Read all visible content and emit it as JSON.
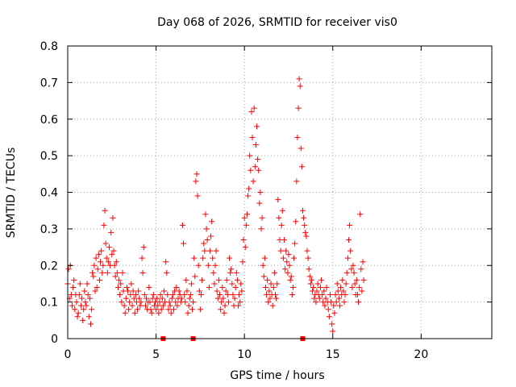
{
  "chart_data": {
    "type": "scatter",
    "title": "Day 068 of 2026, SRMTID for receiver vis0",
    "xlabel": "GPS time / hours",
    "ylabel": "SRMTID / TECUs",
    "xlim": [
      0,
      24
    ],
    "ylim": [
      0,
      0.8
    ],
    "grid": true,
    "x_ticks": [
      0,
      5,
      10,
      15,
      20
    ],
    "x_tick_labels": [
      "0",
      "5",
      "10",
      "15",
      "20"
    ],
    "y_ticks": [
      0,
      0.1,
      0.2,
      0.3,
      0.4,
      0.5,
      0.6,
      0.7,
      0.8
    ],
    "y_tick_labels": [
      "0",
      "0.1",
      "0.2",
      "0.3",
      "0.4",
      "0.5",
      "0.6",
      "0.7",
      "0.8"
    ],
    "marker": "plus",
    "color": "#ff0000",
    "baseline_markers_x": [
      5.4,
      7.1,
      13.3
    ],
    "series": [
      {
        "name": "vis0",
        "x": [
          0.0,
          0.05,
          0.1,
          0.15,
          0.2,
          0.25,
          0.3,
          0.35,
          0.4,
          0.45,
          0.5,
          0.55,
          0.6,
          0.65,
          0.7,
          0.75,
          0.8,
          0.85,
          0.9,
          0.95,
          1.0,
          1.05,
          1.1,
          1.15,
          1.2,
          1.25,
          1.3,
          1.35,
          1.4,
          1.45,
          1.5,
          1.55,
          1.6,
          1.65,
          1.7,
          1.75,
          1.8,
          1.85,
          1.9,
          1.95,
          2.0,
          2.05,
          2.1,
          2.15,
          2.2,
          2.25,
          2.3,
          2.35,
          2.4,
          2.45,
          2.5,
          2.55,
          2.6,
          2.65,
          2.7,
          2.75,
          2.8,
          2.85,
          2.9,
          2.95,
          3.0,
          3.05,
          3.1,
          3.15,
          3.2,
          3.25,
          3.3,
          3.35,
          3.4,
          3.45,
          3.5,
          3.55,
          3.6,
          3.65,
          3.7,
          3.75,
          3.8,
          3.85,
          3.9,
          3.95,
          4.0,
          4.05,
          4.1,
          4.15,
          4.2,
          4.25,
          4.3,
          4.35,
          4.4,
          4.45,
          4.5,
          4.55,
          4.6,
          4.65,
          4.7,
          4.75,
          4.8,
          4.85,
          4.9,
          4.95,
          5.0,
          5.05,
          5.1,
          5.15,
          5.2,
          5.25,
          5.3,
          5.35,
          5.4,
          5.45,
          5.5,
          5.55,
          5.6,
          5.65,
          5.7,
          5.75,
          5.8,
          5.85,
          5.9,
          5.95,
          6.0,
          6.05,
          6.1,
          6.15,
          6.2,
          6.25,
          6.3,
          6.35,
          6.4,
          6.45,
          6.5,
          6.55,
          6.6,
          6.65,
          6.7,
          6.75,
          6.8,
          6.85,
          6.9,
          6.95,
          7.0,
          7.05,
          7.1,
          7.15,
          7.2,
          7.25,
          7.3,
          7.35,
          7.4,
          7.45,
          7.5,
          7.55,
          7.6,
          7.65,
          7.7,
          7.75,
          7.8,
          7.85,
          7.9,
          7.95,
          8.0,
          8.05,
          8.1,
          8.15,
          8.2,
          8.25,
          8.3,
          8.35,
          8.4,
          8.45,
          8.5,
          8.55,
          8.6,
          8.65,
          8.7,
          8.75,
          8.8,
          8.85,
          8.9,
          8.95,
          9.0,
          9.05,
          9.1,
          9.15,
          9.2,
          9.25,
          9.3,
          9.35,
          9.4,
          9.45,
          9.5,
          9.55,
          9.6,
          9.65,
          9.7,
          9.75,
          9.8,
          9.85,
          9.9,
          9.95,
          10.0,
          10.05,
          10.1,
          10.15,
          10.2,
          10.25,
          10.3,
          10.35,
          10.4,
          10.45,
          10.5,
          10.55,
          10.6,
          10.65,
          10.7,
          10.75,
          10.8,
          10.85,
          10.9,
          10.95,
          11.0,
          11.05,
          11.1,
          11.15,
          11.2,
          11.25,
          11.3,
          11.35,
          11.4,
          11.45,
          11.5,
          11.55,
          11.6,
          11.65,
          11.7,
          11.75,
          11.8,
          11.85,
          11.9,
          11.95,
          12.0,
          12.05,
          12.1,
          12.15,
          12.2,
          12.25,
          12.3,
          12.35,
          12.4,
          12.45,
          12.5,
          12.55,
          12.6,
          12.65,
          12.7,
          12.75,
          12.8,
          12.85,
          12.9,
          12.95,
          13.0,
          13.05,
          13.1,
          13.15,
          13.2,
          13.25,
          13.3,
          13.35,
          13.4,
          13.45,
          13.5,
          13.55,
          13.6,
          13.65,
          13.7,
          13.75,
          13.8,
          13.85,
          13.9,
          13.95,
          14.0,
          14.05,
          14.1,
          14.15,
          14.2,
          14.25,
          14.3,
          14.35,
          14.4,
          14.45,
          14.5,
          14.55,
          14.6,
          14.65,
          14.7,
          14.75,
          14.8,
          14.85,
          14.9,
          14.95,
          15.0,
          15.05,
          15.1,
          15.15,
          15.2,
          15.25,
          15.3,
          15.35,
          15.4,
          15.45,
          15.5,
          15.55,
          15.6,
          15.65,
          15.7,
          15.75,
          15.8,
          15.85,
          15.9,
          15.95,
          16.0,
          16.05,
          16.1,
          16.15,
          16.2,
          16.25,
          16.3,
          16.35,
          16.4,
          16.45,
          16.5,
          16.55,
          16.6,
          16.65,
          16.7,
          16.75
        ],
        "y": [
          0.15,
          0.19,
          0.11,
          0.2,
          0.12,
          0.09,
          0.14,
          0.16,
          0.08,
          0.12,
          0.1,
          0.06,
          0.07,
          0.12,
          0.15,
          0.09,
          0.11,
          0.05,
          0.08,
          0.13,
          0.1,
          0.09,
          0.15,
          0.12,
          0.06,
          0.11,
          0.04,
          0.08,
          0.18,
          0.17,
          0.2,
          0.13,
          0.22,
          0.14,
          0.19,
          0.23,
          0.16,
          0.21,
          0.24,
          0.18,
          0.2,
          0.31,
          0.35,
          0.26,
          0.22,
          0.18,
          0.21,
          0.25,
          0.2,
          0.29,
          0.23,
          0.33,
          0.24,
          0.2,
          0.17,
          0.21,
          0.18,
          0.14,
          0.16,
          0.12,
          0.15,
          0.1,
          0.18,
          0.13,
          0.09,
          0.07,
          0.11,
          0.14,
          0.13,
          0.08,
          0.1,
          0.12,
          0.15,
          0.09,
          0.13,
          0.11,
          0.07,
          0.12,
          0.1,
          0.08,
          0.13,
          0.11,
          0.09,
          0.1,
          0.22,
          0.18,
          0.25,
          0.12,
          0.09,
          0.11,
          0.08,
          0.1,
          0.14,
          0.1,
          0.08,
          0.07,
          0.11,
          0.12,
          0.09,
          0.1,
          0.08,
          0.11,
          0.09,
          0.07,
          0.1,
          0.12,
          0.08,
          0.11,
          0.09,
          0.13,
          0.1,
          0.21,
          0.18,
          0.12,
          0.08,
          0.1,
          0.09,
          0.07,
          0.11,
          0.12,
          0.08,
          0.13,
          0.1,
          0.14,
          0.09,
          0.11,
          0.13,
          0.12,
          0.1,
          0.11,
          0.31,
          0.26,
          0.12,
          0.1,
          0.16,
          0.13,
          0.07,
          0.09,
          0.11,
          0.12,
          0.15,
          0.08,
          0.1,
          0.22,
          0.17,
          0.43,
          0.45,
          0.39,
          0.2,
          0.13,
          0.08,
          0.12,
          0.16,
          0.22,
          0.26,
          0.24,
          0.34,
          0.3,
          0.27,
          0.2,
          0.14,
          0.24,
          0.28,
          0.32,
          0.22,
          0.18,
          0.15,
          0.2,
          0.24,
          0.13,
          0.11,
          0.16,
          0.12,
          0.08,
          0.1,
          0.14,
          0.11,
          0.07,
          0.09,
          0.13,
          0.16,
          0.12,
          0.1,
          0.22,
          0.18,
          0.19,
          0.15,
          0.12,
          0.09,
          0.11,
          0.14,
          0.18,
          0.16,
          0.09,
          0.12,
          0.1,
          0.15,
          0.13,
          0.21,
          0.27,
          0.33,
          0.25,
          0.31,
          0.34,
          0.39,
          0.41,
          0.5,
          0.46,
          0.62,
          0.55,
          0.43,
          0.63,
          0.47,
          0.53,
          0.58,
          0.49,
          0.46,
          0.37,
          0.4,
          0.3,
          0.33,
          0.2,
          0.17,
          0.22,
          0.14,
          0.12,
          0.16,
          0.1,
          0.13,
          0.11,
          0.15,
          0.12,
          0.09,
          0.14,
          0.18,
          0.12,
          0.11,
          0.15,
          0.38,
          0.33,
          0.27,
          0.24,
          0.31,
          0.35,
          0.22,
          0.27,
          0.19,
          0.24,
          0.21,
          0.18,
          0.23,
          0.2,
          0.16,
          0.17,
          0.12,
          0.14,
          0.22,
          0.26,
          0.32,
          0.43,
          0.55,
          0.63,
          0.71,
          0.69,
          0.52,
          0.47,
          0.35,
          0.33,
          0.31,
          0.29,
          0.28,
          0.24,
          0.22,
          0.19,
          0.17,
          0.15,
          0.16,
          0.13,
          0.14,
          0.11,
          0.12,
          0.1,
          0.13,
          0.15,
          0.12,
          0.11,
          0.14,
          0.16,
          0.12,
          0.1,
          0.13,
          0.09,
          0.11,
          0.14,
          0.1,
          0.08,
          0.06,
          0.12,
          0.1,
          0.04,
          0.02,
          0.09,
          0.07,
          0.12,
          0.1,
          0.15,
          0.13,
          0.11,
          0.09,
          0.14,
          0.12,
          0.16,
          0.13,
          0.1,
          0.12,
          0.15,
          0.18,
          0.22,
          0.27,
          0.31,
          0.24,
          0.19,
          0.14,
          0.2,
          0.18,
          0.15,
          0.12,
          0.16,
          0.12,
          0.1,
          0.14,
          0.34,
          0.19,
          0.13,
          0.21,
          0.16
        ]
      }
    ]
  }
}
